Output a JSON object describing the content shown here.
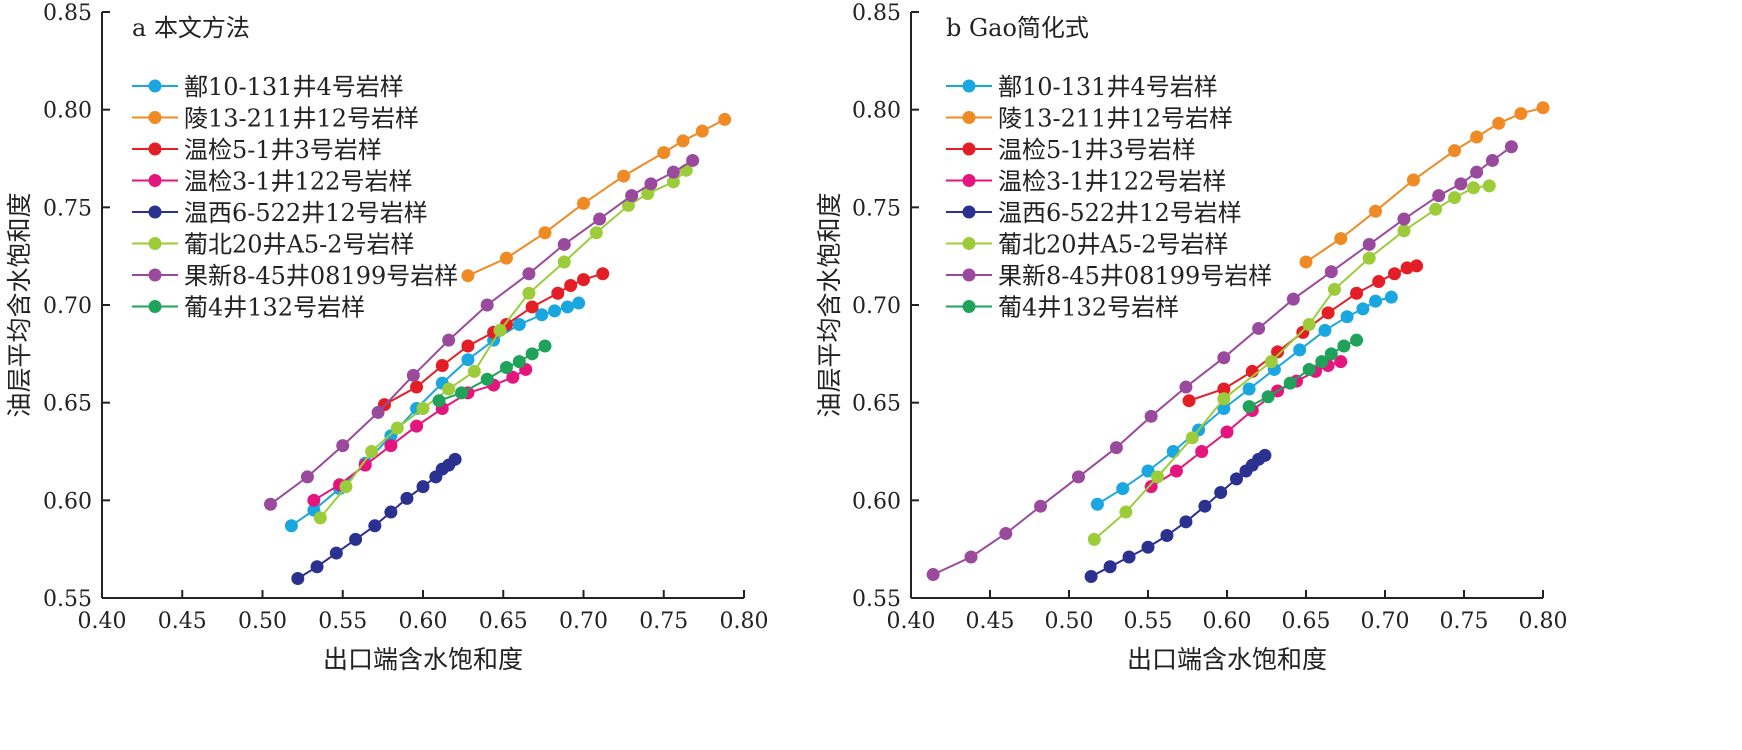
{
  "chart_data": [
    {
      "type": "line",
      "title": "a 本文方法",
      "xlabel": "出口端含水饱和度",
      "ylabel": "油层平均含水饱和度",
      "xlim": [
        0.4,
        0.8
      ],
      "ylim": [
        0.55,
        0.85
      ],
      "xticks": [
        "0.40",
        "0.45",
        "0.50",
        "0.55",
        "0.60",
        "0.65",
        "0.70",
        "0.75",
        "0.80"
      ],
      "yticks": [
        "0.55",
        "0.60",
        "0.65",
        "0.70",
        "0.75",
        "0.80",
        "0.85"
      ],
      "grid": false,
      "legend_position": "top-left",
      "series": [
        {
          "name": "鄯10-131井4号岩样",
          "color": "#1aa7e0",
          "x": [
            0.518,
            0.532,
            0.548,
            0.564,
            0.58,
            0.596,
            0.612,
            0.628,
            0.644,
            0.66,
            0.674,
            0.682,
            0.69,
            0.697
          ],
          "y": [
            0.587,
            0.595,
            0.606,
            0.619,
            0.633,
            0.647,
            0.66,
            0.672,
            0.682,
            0.69,
            0.695,
            0.697,
            0.699,
            0.701
          ]
        },
        {
          "name": "陵13-211井12号岩样",
          "color": "#f08a24",
          "x": [
            0.628,
            0.652,
            0.676,
            0.7,
            0.725,
            0.75,
            0.762,
            0.774,
            0.788
          ],
          "y": [
            0.715,
            0.724,
            0.737,
            0.752,
            0.766,
            0.778,
            0.784,
            0.789,
            0.795
          ]
        },
        {
          "name": "温检5-1井3号岩样",
          "color": "#e41e26",
          "x": [
            0.576,
            0.596,
            0.612,
            0.628,
            0.644,
            0.652,
            0.668,
            0.684,
            0.692,
            0.7,
            0.712
          ],
          "y": [
            0.649,
            0.658,
            0.669,
            0.679,
            0.686,
            0.69,
            0.699,
            0.706,
            0.71,
            0.713,
            0.716
          ]
        },
        {
          "name": "温检3-1井122号岩样",
          "color": "#e5157e",
          "x": [
            0.532,
            0.548,
            0.564,
            0.58,
            0.596,
            0.612,
            0.628,
            0.644,
            0.656,
            0.664
          ],
          "y": [
            0.6,
            0.608,
            0.618,
            0.628,
            0.638,
            0.647,
            0.655,
            0.659,
            0.663,
            0.667
          ]
        },
        {
          "name": "温西6-522井12号岩样",
          "color": "#2a3190",
          "x": [
            0.522,
            0.534,
            0.546,
            0.558,
            0.57,
            0.58,
            0.59,
            0.6,
            0.608,
            0.612,
            0.616,
            0.62
          ],
          "y": [
            0.56,
            0.566,
            0.573,
            0.58,
            0.587,
            0.594,
            0.601,
            0.607,
            0.612,
            0.616,
            0.618,
            0.621
          ]
        },
        {
          "name": "葡北20井A5-2号岩样",
          "color": "#9dcc3a",
          "x": [
            0.536,
            0.552,
            0.568,
            0.584,
            0.6,
            0.616,
            0.632,
            0.648,
            0.666,
            0.688,
            0.708,
            0.728,
            0.74,
            0.756,
            0.764
          ],
          "y": [
            0.591,
            0.607,
            0.625,
            0.637,
            0.647,
            0.657,
            0.666,
            0.687,
            0.706,
            0.722,
            0.737,
            0.751,
            0.757,
            0.763,
            0.769
          ]
        },
        {
          "name": "果新8-45井08199号岩样",
          "color": "#9a4a9c",
          "x": [
            0.505,
            0.528,
            0.55,
            0.572,
            0.594,
            0.616,
            0.64,
            0.666,
            0.688,
            0.71,
            0.73,
            0.742,
            0.756,
            0.768
          ],
          "y": [
            0.598,
            0.612,
            0.628,
            0.645,
            0.664,
            0.682,
            0.7,
            0.716,
            0.731,
            0.744,
            0.756,
            0.762,
            0.768,
            0.774
          ]
        },
        {
          "name": "葡4井132号岩样",
          "color": "#1fa35a",
          "x": [
            0.61,
            0.624,
            0.64,
            0.652,
            0.66,
            0.668,
            0.676
          ],
          "y": [
            0.651,
            0.655,
            0.662,
            0.668,
            0.671,
            0.675,
            0.679
          ]
        }
      ]
    },
    {
      "type": "line",
      "title": "b Gao简化式",
      "xlabel": "出口端含水饱和度",
      "ylabel": "油层平均含水饱和度",
      "xlim": [
        0.4,
        0.8
      ],
      "ylim": [
        0.55,
        0.85
      ],
      "xticks": [
        "0.40",
        "0.45",
        "0.50",
        "0.55",
        "0.60",
        "0.65",
        "0.70",
        "0.75",
        "0.80"
      ],
      "yticks": [
        "0.55",
        "0.60",
        "0.65",
        "0.70",
        "0.75",
        "0.80",
        "0.85"
      ],
      "grid": false,
      "legend_position": "top-left",
      "series": [
        {
          "name": "鄯10-131井4号岩样",
          "color": "#1aa7e0",
          "x": [
            0.518,
            0.534,
            0.55,
            0.566,
            0.582,
            0.598,
            0.614,
            0.63,
            0.646,
            0.662,
            0.676,
            0.686,
            0.694,
            0.704
          ],
          "y": [
            0.598,
            0.606,
            0.615,
            0.625,
            0.636,
            0.647,
            0.657,
            0.667,
            0.677,
            0.687,
            0.694,
            0.698,
            0.702,
            0.704
          ]
        },
        {
          "name": "陵13-211井12号岩样",
          "color": "#f08a24",
          "x": [
            0.65,
            0.672,
            0.694,
            0.718,
            0.744,
            0.758,
            0.772,
            0.786,
            0.8
          ],
          "y": [
            0.722,
            0.734,
            0.748,
            0.764,
            0.779,
            0.786,
            0.793,
            0.798,
            0.801
          ]
        },
        {
          "name": "温检5-1井3号岩样",
          "color": "#e41e26",
          "x": [
            0.576,
            0.598,
            0.616,
            0.632,
            0.648,
            0.664,
            0.682,
            0.696,
            0.706,
            0.714,
            0.72
          ],
          "y": [
            0.651,
            0.657,
            0.666,
            0.676,
            0.686,
            0.696,
            0.706,
            0.712,
            0.716,
            0.719,
            0.72
          ]
        },
        {
          "name": "温检3-1井122号岩样",
          "color": "#e5157e",
          "x": [
            0.552,
            0.568,
            0.584,
            0.6,
            0.616,
            0.632,
            0.644,
            0.656,
            0.664,
            0.672
          ],
          "y": [
            0.607,
            0.615,
            0.625,
            0.635,
            0.646,
            0.656,
            0.661,
            0.666,
            0.669,
            0.671
          ]
        },
        {
          "name": "温西6-522井12号岩样",
          "color": "#2a3190",
          "x": [
            0.514,
            0.526,
            0.538,
            0.55,
            0.562,
            0.574,
            0.586,
            0.596,
            0.606,
            0.612,
            0.616,
            0.62,
            0.624
          ],
          "y": [
            0.561,
            0.566,
            0.571,
            0.576,
            0.582,
            0.589,
            0.597,
            0.604,
            0.611,
            0.615,
            0.618,
            0.621,
            0.623
          ]
        },
        {
          "name": "葡北20井A5-2号岩样",
          "color": "#9dcc3a",
          "x": [
            0.516,
            0.536,
            0.556,
            0.578,
            0.598,
            0.628,
            0.652,
            0.668,
            0.69,
            0.712,
            0.732,
            0.744,
            0.756,
            0.766
          ],
          "y": [
            0.58,
            0.594,
            0.612,
            0.632,
            0.652,
            0.671,
            0.69,
            0.708,
            0.724,
            0.738,
            0.749,
            0.755,
            0.76,
            0.761
          ]
        },
        {
          "name": "果新8-45井08199号岩样",
          "color": "#9a4a9c",
          "x": [
            0.414,
            0.438,
            0.46,
            0.482,
            0.506,
            0.53,
            0.552,
            0.574,
            0.598,
            0.62,
            0.642,
            0.666,
            0.69,
            0.712,
            0.734,
            0.748,
            0.758,
            0.768,
            0.78
          ],
          "y": [
            0.562,
            0.571,
            0.583,
            0.597,
            0.612,
            0.627,
            0.643,
            0.658,
            0.673,
            0.688,
            0.703,
            0.717,
            0.731,
            0.744,
            0.756,
            0.762,
            0.768,
            0.774,
            0.781
          ]
        },
        {
          "name": "葡4井132号岩样",
          "color": "#1fa35a",
          "x": [
            0.614,
            0.626,
            0.64,
            0.652,
            0.66,
            0.666,
            0.674,
            0.682
          ],
          "y": [
            0.648,
            0.653,
            0.66,
            0.667,
            0.671,
            0.675,
            0.679,
            0.682
          ]
        }
      ]
    }
  ]
}
